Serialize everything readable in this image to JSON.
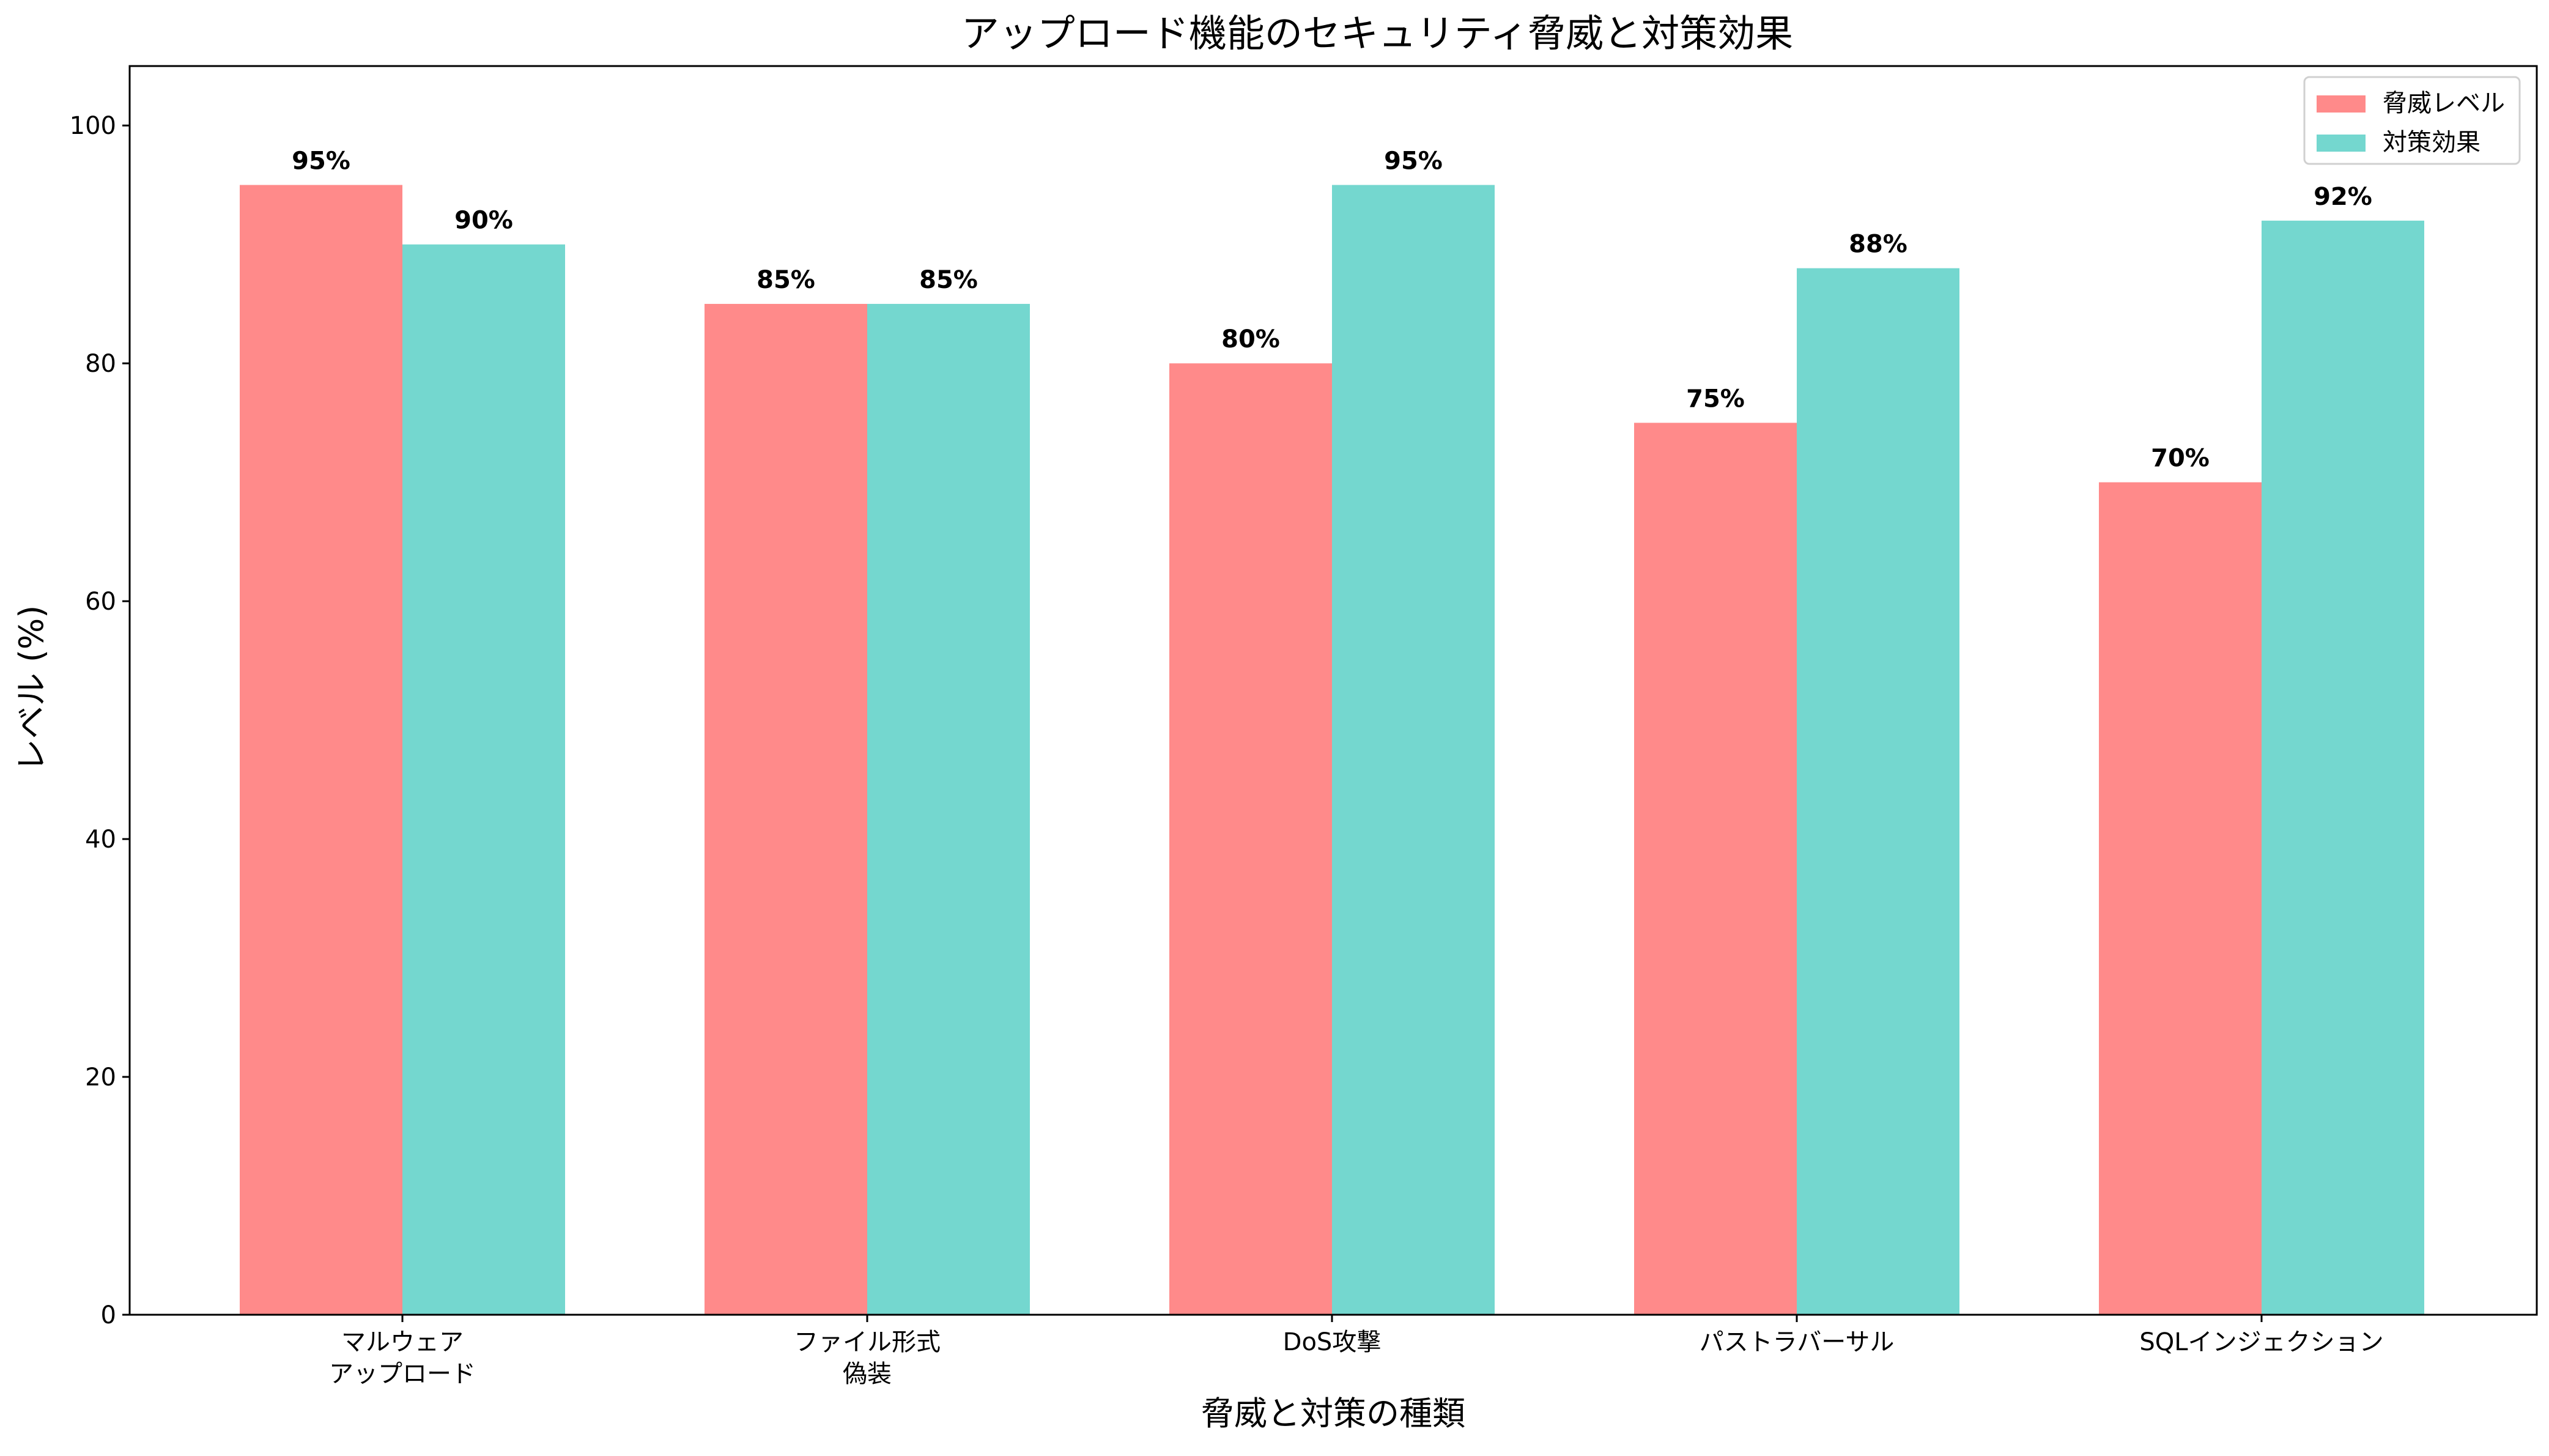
{
  "chart_data": {
    "type": "bar",
    "title": "アップロード機能のセキュリティ脅威と対策効果",
    "xlabel": "脅威と対策の種類",
    "ylabel": "レベル (%)",
    "categories": [
      [
        "マルウェア",
        "アップロード"
      ],
      [
        "ファイル形式",
        "偽装"
      ],
      [
        "DoS攻撃"
      ],
      [
        "パストラバーサル"
      ],
      [
        "SQLインジェクション"
      ]
    ],
    "series": [
      {
        "name": "脅威レベル",
        "values": [
          95,
          85,
          80,
          75,
          70
        ],
        "color": "#FF8A8A"
      },
      {
        "name": "対策効果",
        "values": [
          90,
          85,
          95,
          88,
          92
        ],
        "color": "#74D7CF"
      }
    ],
    "value_labels": [
      [
        "95%",
        "85%",
        "80%",
        "75%",
        "70%"
      ],
      [
        "90%",
        "85%",
        "95%",
        "88%",
        "92%"
      ]
    ],
    "yticks": [
      0,
      20,
      40,
      60,
      80,
      100
    ],
    "ytick_labels": [
      "0",
      "20",
      "40",
      "60",
      "80",
      "100"
    ],
    "ylim": [
      0,
      105
    ],
    "grid": false,
    "legend_position": "top-right"
  }
}
